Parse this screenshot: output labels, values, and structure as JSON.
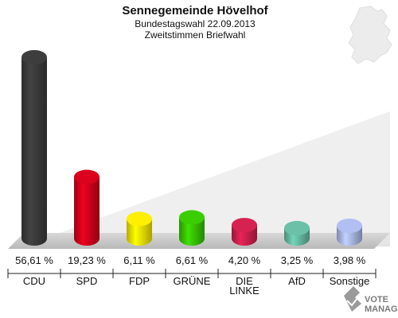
{
  "chart_data": {
    "type": "bar",
    "title": "Sennegemeinde Hövelhof",
    "subtitle_lines": [
      "Bundestagswahl 22.09.2013",
      "Zweitstimmen Briefwahl"
    ],
    "categories": [
      "CDU",
      "SPD",
      "FDP",
      "GRÜNE",
      "DIE LINKE",
      "AfD",
      "Sonstige"
    ],
    "category_lines": [
      [
        "CDU"
      ],
      [
        "SPD"
      ],
      [
        "FDP"
      ],
      [
        "GRÜNE"
      ],
      [
        "DIE",
        "LINKE"
      ],
      [
        "AfD"
      ],
      [
        "Sonstige"
      ]
    ],
    "values": [
      56.61,
      19.23,
      6.11,
      6.61,
      4.2,
      3.25,
      3.98
    ],
    "value_labels": [
      "56,61 %",
      "19,23 %",
      "6,11 %",
      "6,61 %",
      "4,20 %",
      "3,25 %",
      "3,98 %"
    ],
    "colors": [
      "#3a3a3a",
      "#d0021b",
      "#f5e400",
      "#37c400",
      "#cc1f4d",
      "#66b8a0",
      "#a9b6e6"
    ],
    "ylim": [
      0,
      60
    ],
    "grid": false,
    "legend": "none"
  },
  "watermark": {
    "logo_lines": [
      "VOTE",
      "MANAGER"
    ],
    "icon": "ballot-check-icon",
    "map_icon": "germany-map-icon"
  }
}
